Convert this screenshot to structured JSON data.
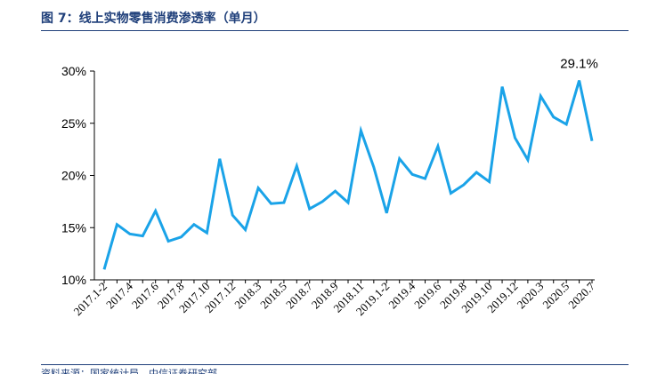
{
  "figure": {
    "title": "图 7：线上实物零售消费渗透率（单月）",
    "source": "资料来源：国家统计局，中信证券研究部"
  },
  "chart_data": {
    "type": "line",
    "title": "",
    "xlabel": "",
    "ylabel": "",
    "ylim": [
      10,
      30
    ],
    "yticks": [
      "10%",
      "15%",
      "20%",
      "25%",
      "30%"
    ],
    "line_color": "#1aa3e8",
    "grid": false,
    "x": [
      "2017.1-2",
      "2017.3",
      "2017.4",
      "2017.5",
      "2017.6",
      "2017.7",
      "2017.8",
      "2017.9",
      "2017.10",
      "2017.11",
      "2017.12",
      "2018.1-2",
      "2018.3",
      "2018.4",
      "2018.5",
      "2018.6",
      "2018.7",
      "2018.8",
      "2018.9",
      "2018.10",
      "2018.11",
      "2018.12",
      "2019.1-2",
      "2019.3",
      "2019.4",
      "2019.5",
      "2019.6",
      "2019.7",
      "2019.8",
      "2019.9",
      "2019.10",
      "2019.11",
      "2019.12",
      "2020.1-2",
      "2020.3",
      "2020.4",
      "2020.5",
      "2020.6",
      "2020.7"
    ],
    "xticks_shown": [
      "2017.1-2",
      "2017.4",
      "2017.6",
      "2017.8",
      "2017.10",
      "2017.12",
      "2018.3",
      "2018.5",
      "2018.7",
      "2018.9",
      "2018.11",
      "2019.1-2",
      "2019.4",
      "2019.6",
      "2019.8",
      "2019.10",
      "2019.12",
      "2020.3",
      "2020.5",
      "2020.7"
    ],
    "series": [
      {
        "values": [
          11.0,
          15.3,
          14.4,
          14.2,
          16.6,
          13.7,
          14.1,
          15.3,
          14.5,
          21.6,
          16.2,
          14.8,
          18.8,
          17.3,
          17.4,
          20.9,
          16.8,
          17.5,
          18.5,
          17.4,
          24.3,
          20.8,
          16.4,
          21.6,
          20.1,
          19.7,
          22.8,
          18.3,
          19.1,
          20.3,
          19.4,
          28.5,
          23.6,
          21.5,
          27.6,
          25.6,
          24.9,
          29.1,
          23.3
        ]
      }
    ],
    "annotation": {
      "x": "2020.6",
      "text": "29.1%"
    }
  }
}
